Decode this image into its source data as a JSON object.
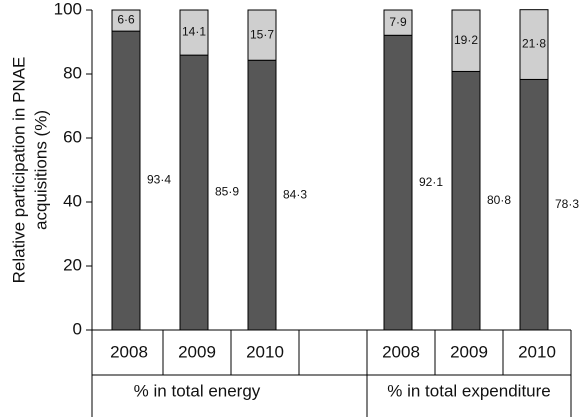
{
  "chart_data": {
    "type": "stacked_bar",
    "ylabel": [
      "Relative participation in PNAE",
      "acquisitions (%)"
    ],
    "categories": [
      "2008",
      "2009",
      "2010",
      null,
      "2008",
      "2009",
      "2010"
    ],
    "groups": [
      "% in total energy",
      "% in total expenditure"
    ],
    "series": [
      {
        "color": "#575757",
        "values": [
          93.4,
          85.9,
          84.3,
          null,
          92.1,
          80.8,
          78.3
        ],
        "value_labels": [
          "93·4",
          "85·9",
          "84·3",
          null,
          "92·1",
          "80·8",
          "78·3"
        ]
      },
      {
        "color": "#cfcfcf",
        "values": [
          6.6,
          14.1,
          15.7,
          null,
          7.9,
          19.2,
          21.8
        ],
        "value_labels": [
          "6·6",
          "14·1",
          "15·7",
          null,
          "7·9",
          "19·2",
          "21·8"
        ]
      }
    ],
    "ylim": [
      0,
      100
    ],
    "yticks": [
      0,
      20,
      40,
      60,
      80,
      100
    ]
  }
}
